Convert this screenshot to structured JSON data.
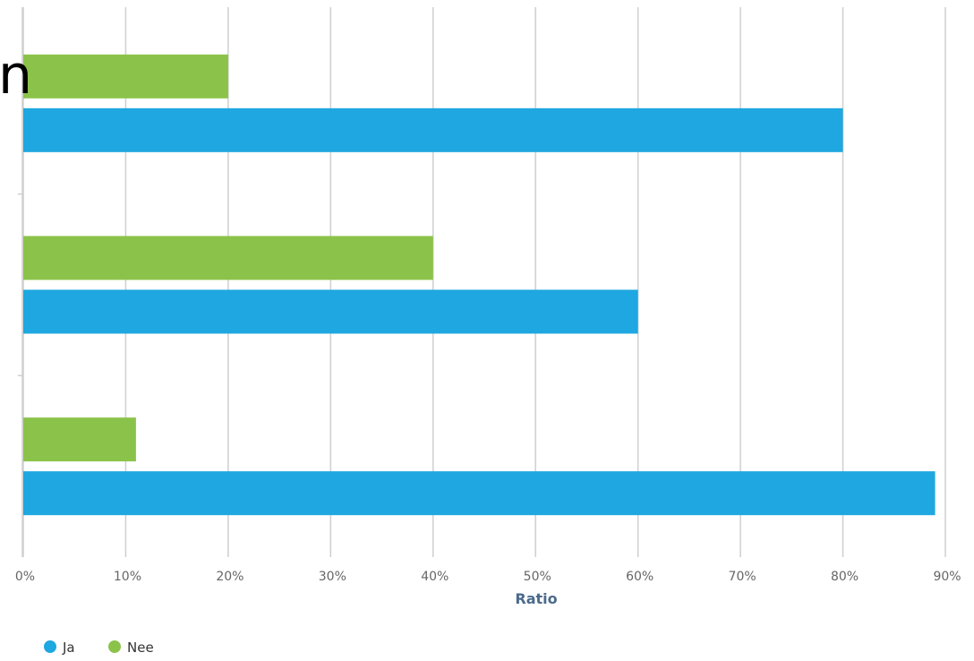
{
  "chart_data": {
    "type": "bar",
    "orientation": "horizontal",
    "categories": [
      "",
      "",
      ""
    ],
    "series": [
      {
        "name": "Ja",
        "color": "#1ea7e0",
        "values": [
          80,
          60,
          89
        ]
      },
      {
        "name": "Nee",
        "color": "#8bc34a",
        "values": [
          20,
          40,
          11
        ]
      }
    ],
    "xlabel": "Ratio",
    "xlim": [
      0,
      90
    ],
    "xticks": [
      "0%",
      "10%",
      "20%",
      "30%",
      "40%",
      "50%",
      "60%",
      "70%",
      "80%",
      "90%"
    ],
    "grid": true,
    "legend": "bottom-left"
  },
  "overlay_text": "n"
}
